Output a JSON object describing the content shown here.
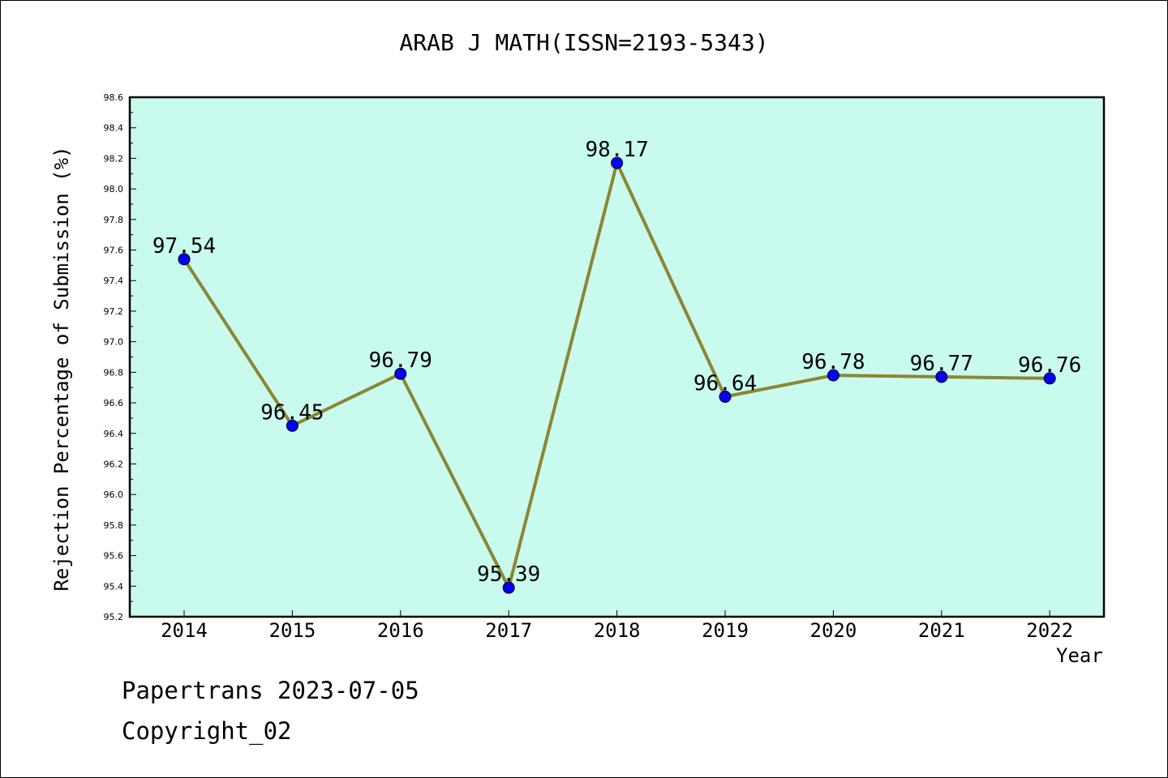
{
  "chart_data": {
    "type": "line",
    "title": "ARAB J MATH(ISSN=2193-5343)",
    "xlabel": "Year",
    "ylabel": "Rejection Percentage of Submission (%)",
    "categories": [
      "2014",
      "2015",
      "2016",
      "2017",
      "2018",
      "2019",
      "2020",
      "2021",
      "2022"
    ],
    "series": [
      {
        "values": [
          97.54,
          96.45,
          96.79,
          95.39,
          98.17,
          96.64,
          96.78,
          96.77,
          96.76
        ],
        "labels": [
          "97.54",
          "96.45",
          "96.79",
          "95.39",
          "98.17",
          "96.64",
          "96.78",
          "96.77",
          "96.76"
        ]
      }
    ],
    "ylim": [
      95.2,
      98.6
    ],
    "yticks": [
      "95.2",
      "95.4",
      "95.6",
      "95.8",
      "96.0",
      "96.2",
      "96.4",
      "96.6",
      "96.8",
      "97.0",
      "97.2",
      "97.4",
      "97.6",
      "97.8",
      "98.0",
      "98.2",
      "98.4",
      "98.6"
    ],
    "grid": false,
    "colors": {
      "plot_background": "#c8fbee",
      "line": "#8b8634",
      "marker": "#0000ff"
    }
  },
  "footer": {
    "date_line": "Papertrans 2023-07-05",
    "copyright": "Copyright_02"
  }
}
